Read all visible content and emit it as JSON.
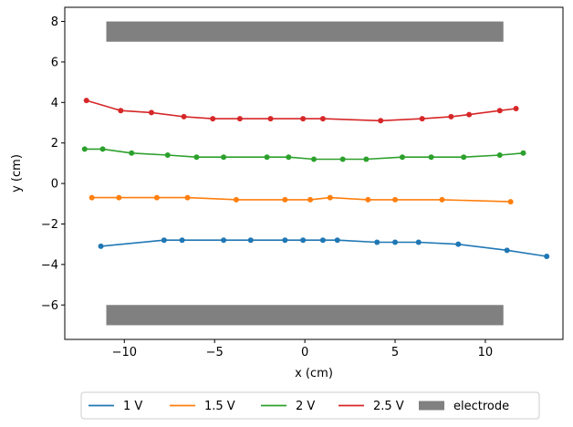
{
  "chart_data": {
    "type": "line",
    "xlabel": "x (cm)",
    "ylabel": "y (cm)",
    "xlim": [
      -13.3,
      14.3
    ],
    "ylim": [
      -7.7,
      8.7
    ],
    "xticks": [
      -10,
      -5,
      0,
      5,
      10
    ],
    "yticks": [
      -6,
      -4,
      -2,
      0,
      2,
      4,
      6,
      8
    ],
    "xtick_labels": [
      "−10",
      "−5",
      "0",
      "5",
      "10"
    ],
    "ytick_labels": [
      "−6",
      "−4",
      "−2",
      "0",
      "2",
      "4",
      "6",
      "8"
    ],
    "grid": false,
    "legend_position": "bottom-center-outside",
    "electrodes": [
      {
        "x0": -11,
        "x1": 11,
        "y0": 7.0,
        "y1": 8.0
      },
      {
        "x0": -11,
        "x1": 11,
        "y0": -7.0,
        "y1": -6.0
      }
    ],
    "electrode_color": "#808080",
    "series": [
      {
        "name": "1 V",
        "color": "#1f77b4",
        "x": [
          -11.3,
          -7.8,
          -6.8,
          -4.5,
          -3,
          -1.1,
          -0.1,
          1,
          1.8,
          4,
          5,
          6.3,
          8.5,
          11.2,
          13.4
        ],
        "y": [
          -3.1,
          -2.8,
          -2.8,
          -2.8,
          -2.8,
          -2.8,
          -2.8,
          -2.8,
          -2.8,
          -2.9,
          -2.9,
          -2.9,
          -3.0,
          -3.3,
          -3.6
        ]
      },
      {
        "name": "1.5 V",
        "color": "#ff7f0e",
        "x": [
          -11.8,
          -10.3,
          -8.2,
          -6.5,
          -3.8,
          -1.1,
          0.3,
          1.4,
          3.5,
          5,
          7.6,
          11.4
        ],
        "y": [
          -0.7,
          -0.7,
          -0.7,
          -0.7,
          -0.8,
          -0.8,
          -0.8,
          -0.7,
          -0.8,
          -0.8,
          -0.8,
          -0.9
        ]
      },
      {
        "name": "2 V",
        "color": "#2ca02c",
        "x": [
          -12.2,
          -11.2,
          -9.6,
          -7.6,
          -6,
          -4.5,
          -2.1,
          -0.9,
          0.5,
          2.1,
          3.4,
          5.4,
          7,
          8.8,
          10.8,
          12.1
        ],
        "y": [
          1.7,
          1.7,
          1.5,
          1.4,
          1.3,
          1.3,
          1.3,
          1.3,
          1.2,
          1.2,
          1.2,
          1.3,
          1.3,
          1.3,
          1.4,
          1.5
        ]
      },
      {
        "name": "2.5 V",
        "color": "#d62728",
        "x": [
          -12.1,
          -10.2,
          -8.5,
          -6.7,
          -5.1,
          -3.6,
          -1.9,
          -0.1,
          1,
          4.2,
          6.5,
          8.1,
          9.1,
          10.8,
          11.7
        ],
        "y": [
          4.1,
          3.6,
          3.5,
          3.3,
          3.2,
          3.2,
          3.2,
          3.2,
          3.2,
          3.1,
          3.2,
          3.3,
          3.4,
          3.6,
          3.7
        ]
      }
    ],
    "legend": [
      {
        "label": "1 V",
        "kind": "line",
        "color": "#1f77b4"
      },
      {
        "label": "1.5 V",
        "kind": "line",
        "color": "#ff7f0e"
      },
      {
        "label": "2 V",
        "kind": "line",
        "color": "#2ca02c"
      },
      {
        "label": "2.5 V",
        "kind": "line",
        "color": "#d62728"
      },
      {
        "label": "electrode",
        "kind": "patch",
        "color": "#808080"
      }
    ]
  }
}
